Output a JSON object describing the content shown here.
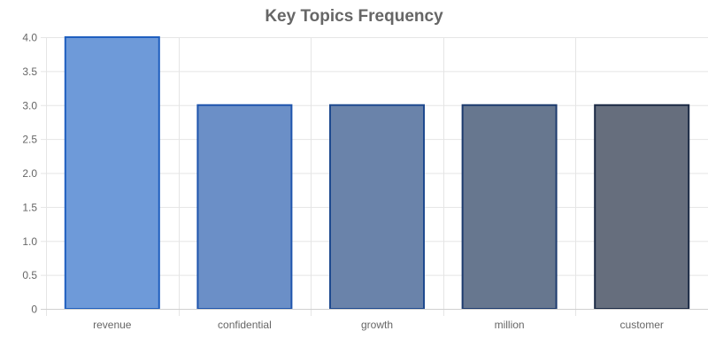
{
  "chart_data": {
    "type": "bar",
    "title": "Key Topics Frequency",
    "xlabel": "",
    "ylabel": "",
    "categories": [
      "revenue",
      "confidential",
      "growth",
      "million",
      "customer"
    ],
    "values": [
      4,
      3,
      3,
      3,
      3
    ],
    "ylim": [
      0,
      4
    ],
    "yticks": [
      "0",
      "0.5",
      "1.0",
      "1.5",
      "2.0",
      "2.5",
      "3.0",
      "3.5",
      "4.0"
    ],
    "grid": true,
    "legend": "none",
    "colors": {
      "fills": [
        "#6e9ad9",
        "#6b8fc7",
        "#6a83aa",
        "#67778f",
        "#666e7d"
      ],
      "borders": [
        "#1f5fbf",
        "#1f55ad",
        "#1f4a8f",
        "#1d3b6e",
        "#1b2a45"
      ],
      "grid": "#e5e5e5",
      "text": "#666666"
    }
  }
}
